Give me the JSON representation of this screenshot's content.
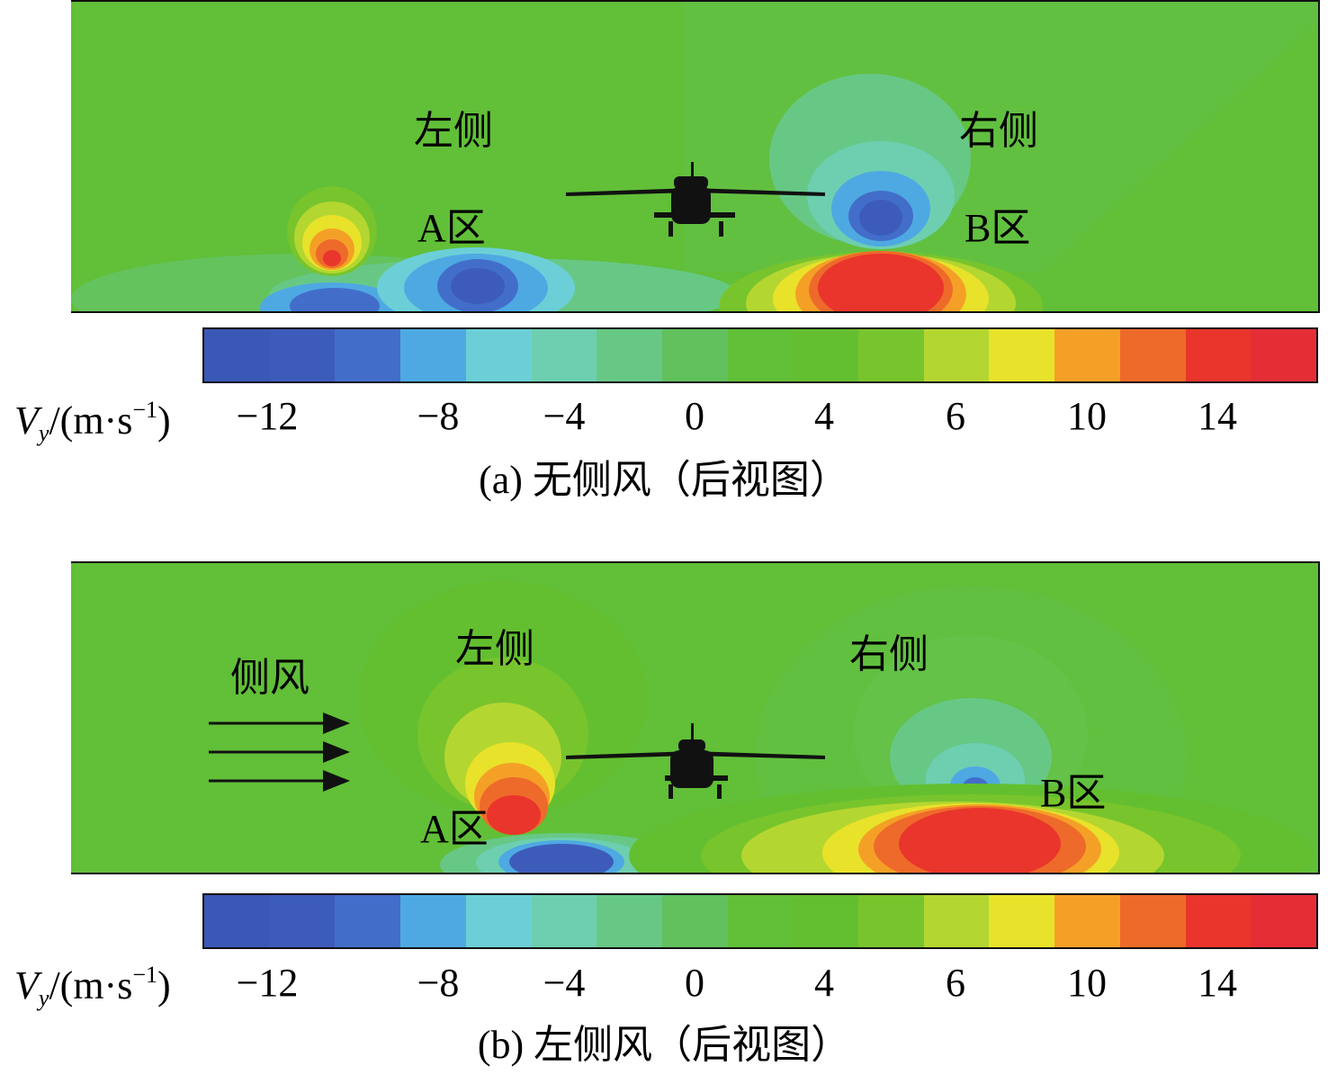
{
  "chart_data": [
    {
      "type": "heatmap",
      "caption": "(a) 无侧风（后视图）",
      "annotations": [
        "左侧",
        "右侧",
        "A区",
        "B区"
      ],
      "colorbar": {
        "label_var": "V",
        "label_sub": "y",
        "label_unit": "/(m·s",
        "label_exp": "−1",
        "label_close": ")",
        "ticks": [
          -12,
          -8,
          -4,
          0,
          4,
          6,
          10,
          14
        ],
        "tick_labels": [
          "−12",
          "−8",
          "−4",
          "0",
          "4",
          "6",
          "10",
          "14"
        ],
        "colors": [
          "#3a58b5",
          "#3d5cba",
          "#426ec9",
          "#4ea9e2",
          "#6ccfd7",
          "#6dcfb0",
          "#67c886",
          "#62c05d",
          "#61bf38",
          "#63bf30",
          "#78c42d",
          "#b4d631",
          "#e8e22a",
          "#f4a027",
          "#ee6a2a",
          "#e9352b",
          "#e52d36"
        ]
      },
      "regions": [
        {
          "name": "A区",
          "min": -13,
          "max": 13
        },
        {
          "name": "B区",
          "min": -12,
          "max": 16
        }
      ]
    },
    {
      "type": "heatmap",
      "caption": "(b) 左侧风（后视图）",
      "annotations": [
        "左侧",
        "右侧",
        "A区",
        "B区",
        "侧风"
      ],
      "colorbar": {
        "label_var": "V",
        "label_sub": "y",
        "label_unit": "/(m·s",
        "label_exp": "−1",
        "label_close": ")",
        "ticks": [
          -12,
          -8,
          -4,
          0,
          4,
          6,
          10,
          14
        ],
        "tick_labels": [
          "−12",
          "−8",
          "−4",
          "0",
          "4",
          "6",
          "10",
          "14"
        ],
        "colors": [
          "#3a58b5",
          "#3d5cba",
          "#426ec9",
          "#4ea9e2",
          "#6ccfd7",
          "#6dcfb0",
          "#67c886",
          "#62c05d",
          "#61bf38",
          "#63bf30",
          "#78c42d",
          "#b4d631",
          "#e8e22a",
          "#f4a027",
          "#ee6a2a",
          "#e9352b",
          "#e52d36"
        ]
      },
      "regions": [
        {
          "name": "A区",
          "min": -13,
          "max": 15
        },
        {
          "name": "B区",
          "min": -11,
          "max": 16
        }
      ]
    }
  ]
}
